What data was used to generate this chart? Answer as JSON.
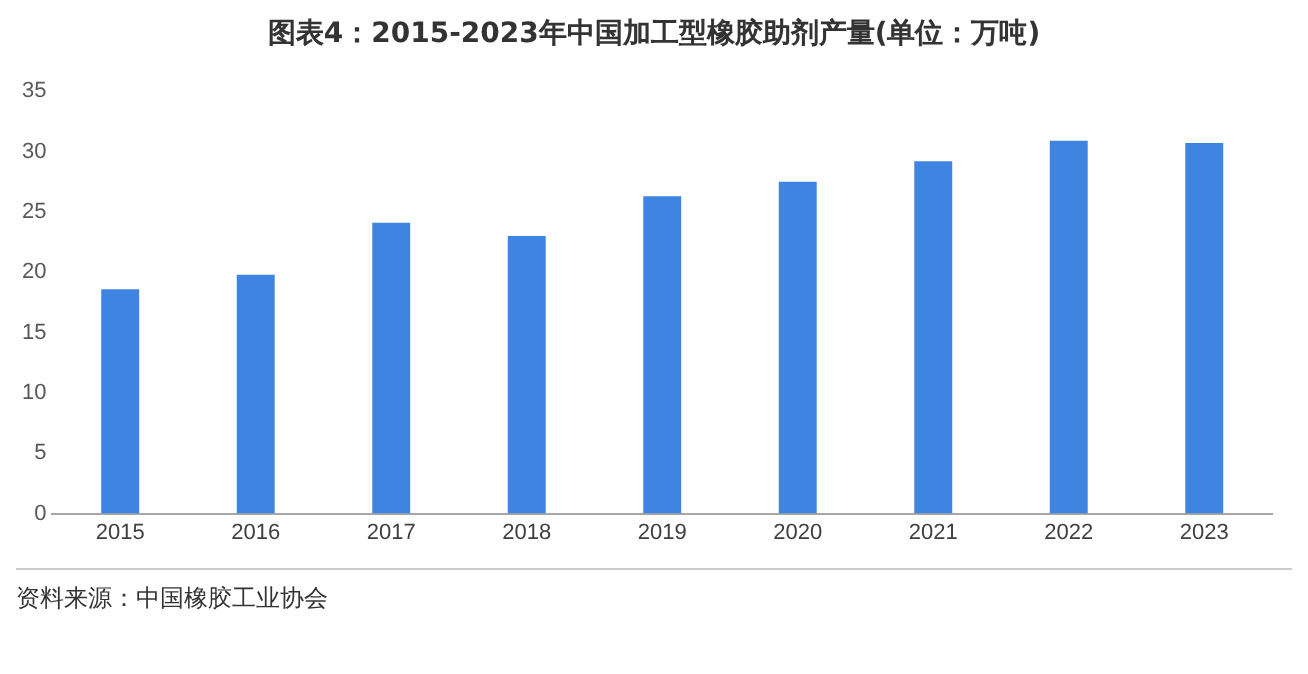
{
  "chart_data": {
    "type": "bar",
    "title": "图表4：2015-2023年中国加工型橡胶助剂产量(单位：万吨)",
    "categories": [
      "2015",
      "2016",
      "2017",
      "2018",
      "2019",
      "2020",
      "2021",
      "2022",
      "2023"
    ],
    "values": [
      18.6,
      19.8,
      24.1,
      23.0,
      26.3,
      27.5,
      29.2,
      30.9,
      30.7
    ],
    "color": "#3f84e1",
    "ylim": [
      0,
      35
    ],
    "yticks": [
      0,
      5,
      10,
      15,
      20,
      25,
      30,
      35
    ],
    "grid": false,
    "legend": false,
    "annotations": [
      "资料来源：中国橡胶工业协会"
    ]
  }
}
